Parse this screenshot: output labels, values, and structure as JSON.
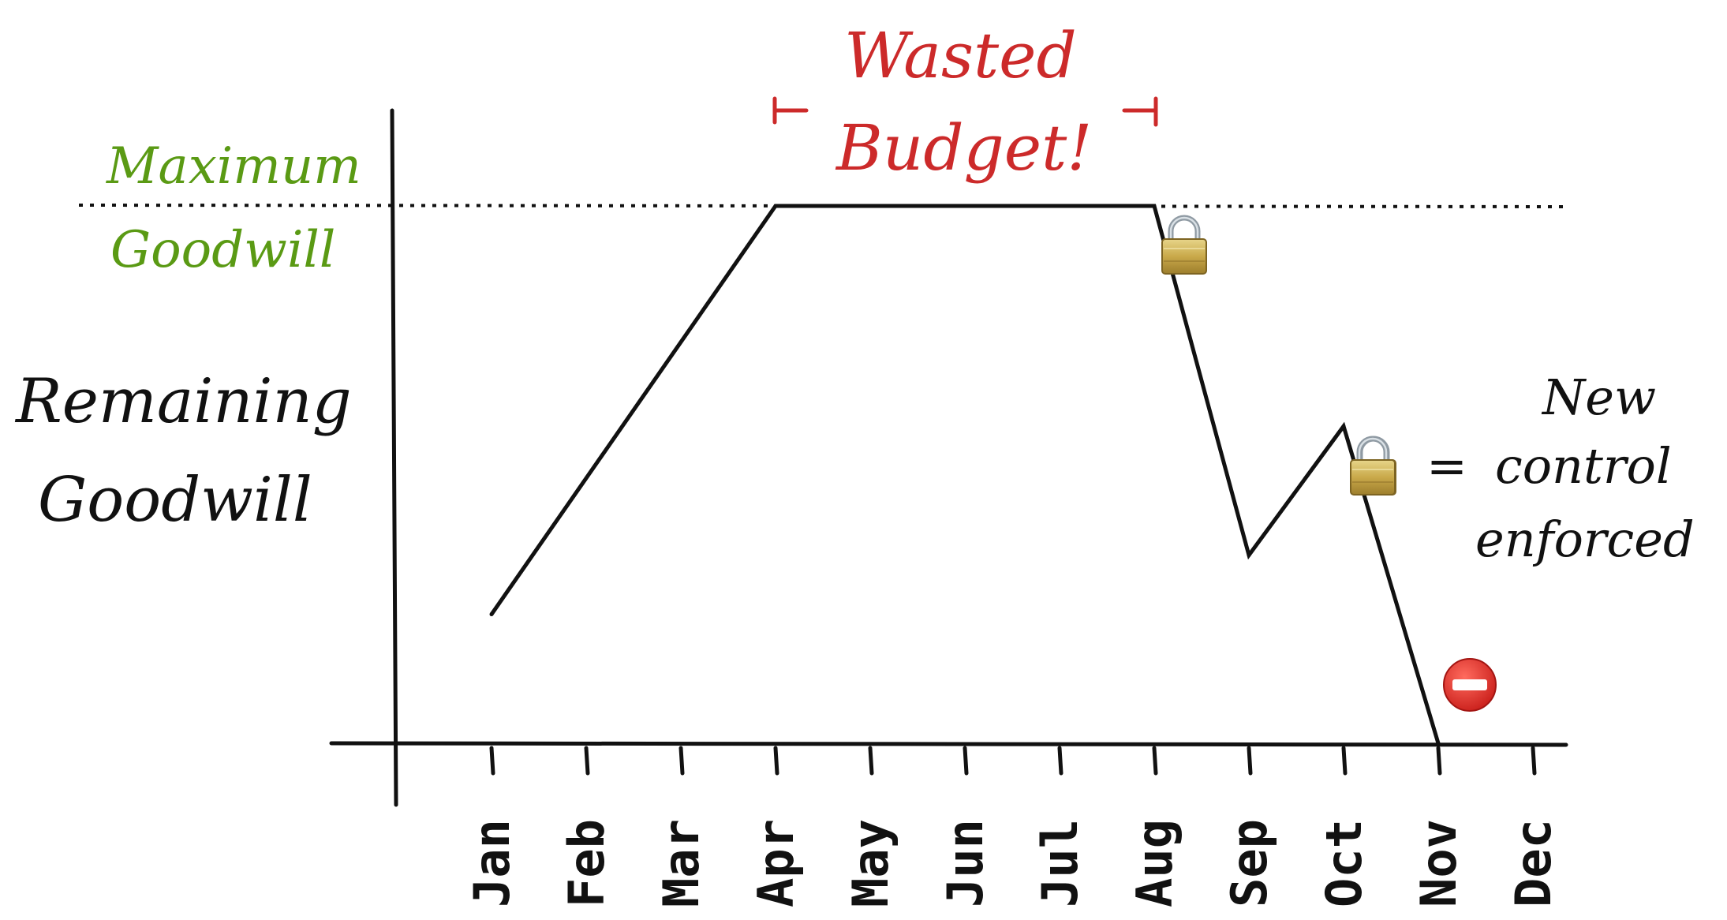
{
  "chart_data": {
    "type": "line",
    "ylabel": "Remaining Goodwill",
    "categories": [
      "Jan",
      "Feb",
      "Mar",
      "Apr",
      "May",
      "Jun",
      "Jul",
      "Aug",
      "Sep",
      "Oct",
      "Nov",
      "Dec"
    ],
    "ylim": [
      0,
      100
    ],
    "series": [
      {
        "points": [
          {
            "x": "Jan",
            "y": 24
          },
          {
            "x": "Apr",
            "y": 100
          },
          {
            "x": "Aug",
            "y": 100
          },
          {
            "x": "Sep",
            "y": 35
          },
          {
            "x": "Oct",
            "y": 59
          },
          {
            "x": "Nov",
            "y": 0
          }
        ]
      }
    ],
    "reference_line": {
      "label": "Maximum Goodwill",
      "y": 100,
      "style": "dotted"
    },
    "annotations": {
      "wasted_budget": {
        "label_line1": "Wasted",
        "label_line2": "Budget!",
        "from": "Apr",
        "to": "Aug",
        "color": "#cc2a2a"
      },
      "locks": [
        {
          "at": "Aug",
          "icon": "lock-icon"
        },
        {
          "at": "Oct",
          "icon": "lock-icon"
        }
      ],
      "stop": {
        "at": "Nov",
        "icon": "no-entry-icon"
      },
      "legend_note": {
        "line1": "New",
        "equals": "=",
        "line2": "control",
        "line3": "enforced"
      }
    },
    "colors": {
      "line": "#111111",
      "maximum": "#5a9a14",
      "wasted": "#cc2a2a"
    }
  }
}
